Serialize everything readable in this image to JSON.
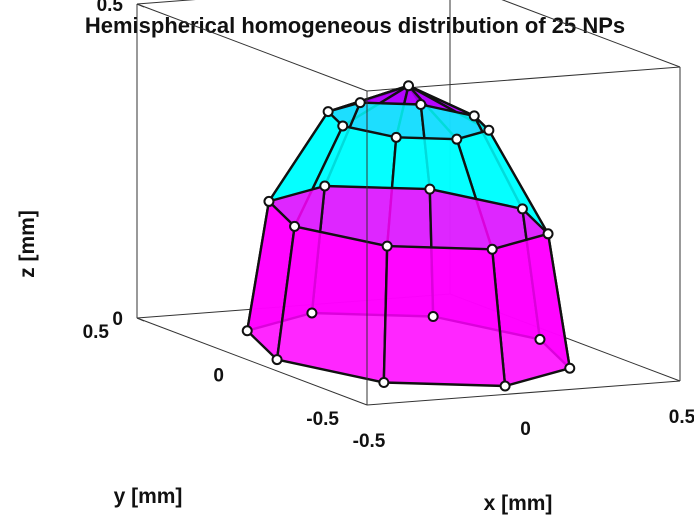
{
  "chart_data": {
    "type": "scatter",
    "title": "Hemispherical homogeneous distribution of 25 NPs",
    "xlabel": "x [mm]",
    "ylabel": "y [mm]",
    "zlabel": "z [mm]",
    "xlim": [
      -0.5,
      0.5
    ],
    "ylim": [
      -0.5,
      0.5
    ],
    "zlim": [
      0,
      0.5
    ],
    "x_ticks": [
      "-0.5",
      "0",
      "0.5"
    ],
    "y_ticks": [
      "-0.5",
      "0",
      "0.5"
    ],
    "z_ticks": [
      "0",
      "0.5"
    ],
    "grid": false,
    "point_count": 25,
    "series": [
      {
        "ring": "bottom",
        "color": "#ff00ff",
        "points": [
          {
            "x": 0.42,
            "y": 0.0,
            "z": 0.0
          },
          {
            "x": 0.297,
            "y": 0.297,
            "z": 0.0
          },
          {
            "x": 0.0,
            "y": 0.42,
            "z": 0.0
          },
          {
            "x": -0.297,
            "y": 0.297,
            "z": 0.0
          },
          {
            "x": -0.42,
            "y": 0.0,
            "z": 0.0
          },
          {
            "x": -0.297,
            "y": -0.297,
            "z": 0.0
          },
          {
            "x": 0.0,
            "y": -0.42,
            "z": 0.0
          },
          {
            "x": 0.297,
            "y": -0.297,
            "z": 0.0
          }
        ]
      },
      {
        "ring": "lower-middle",
        "color": "#00ffff",
        "points": [
          {
            "x": 0.364,
            "y": 0.0,
            "z": 0.21
          },
          {
            "x": 0.257,
            "y": 0.257,
            "z": 0.21
          },
          {
            "x": 0.0,
            "y": 0.364,
            "z": 0.21
          },
          {
            "x": -0.257,
            "y": 0.257,
            "z": 0.21
          },
          {
            "x": -0.364,
            "y": 0.0,
            "z": 0.21
          },
          {
            "x": -0.257,
            "y": -0.257,
            "z": 0.21
          },
          {
            "x": 0.0,
            "y": -0.364,
            "z": 0.21
          },
          {
            "x": 0.257,
            "y": -0.257,
            "z": 0.21
          }
        ]
      },
      {
        "ring": "upper-middle",
        "color": "#b400ff",
        "points": [
          {
            "x": 0.21,
            "y": 0.0,
            "z": 0.364
          },
          {
            "x": 0.148,
            "y": 0.148,
            "z": 0.364
          },
          {
            "x": 0.0,
            "y": 0.21,
            "z": 0.364
          },
          {
            "x": -0.148,
            "y": 0.148,
            "z": 0.364
          },
          {
            "x": -0.21,
            "y": 0.0,
            "z": 0.364
          },
          {
            "x": -0.148,
            "y": -0.148,
            "z": 0.364
          },
          {
            "x": 0.0,
            "y": -0.21,
            "z": 0.364
          },
          {
            "x": 0.148,
            "y": -0.148,
            "z": 0.364
          }
        ]
      },
      {
        "ring": "apex",
        "color": "#7a3cff",
        "points": [
          {
            "x": 0.0,
            "y": 0.0,
            "z": 0.42
          }
        ]
      }
    ]
  }
}
